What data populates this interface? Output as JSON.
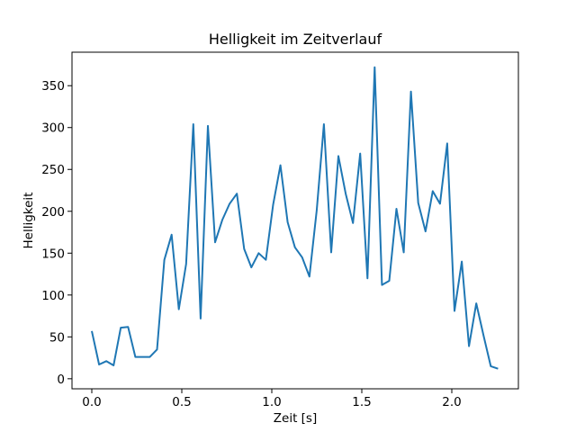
{
  "chart_data": {
    "type": "line",
    "title": "Helligkeit im Zeitverlauf",
    "xlabel": "Zeit [s]",
    "ylabel": "Helligkeit",
    "xlim": [
      -0.11,
      2.37
    ],
    "ylim": [
      -12,
      390
    ],
    "xticks": [
      0.0,
      0.5,
      1.0,
      1.5,
      2.0
    ],
    "xtick_labels": [
      "0.0",
      "0.5",
      "1.0",
      "1.5",
      "2.0"
    ],
    "yticks": [
      0,
      50,
      100,
      150,
      200,
      250,
      300,
      350
    ],
    "ytick_labels": [
      "0",
      "50",
      "100",
      "150",
      "200",
      "250",
      "300",
      "350"
    ],
    "grid": false,
    "dt": 0.0403,
    "series": [
      {
        "name": "Helligkeit",
        "color": "#1f77b4",
        "values": [
          57,
          17,
          21,
          16,
          61,
          62,
          26,
          26,
          26,
          35,
          142,
          172,
          83,
          137,
          304,
          72,
          302,
          163,
          190,
          209,
          221,
          155,
          133,
          150,
          142,
          208,
          255,
          187,
          157,
          145,
          122,
          201,
          304,
          151,
          266,
          221,
          186,
          269,
          120,
          372,
          112,
          117,
          203,
          151,
          343,
          210,
          176,
          224,
          209,
          281,
          81,
          140,
          39,
          90,
          52,
          15,
          12
        ]
      }
    ]
  }
}
